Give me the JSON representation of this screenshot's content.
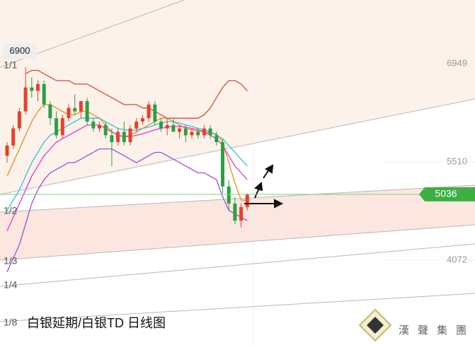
{
  "chart_data": {
    "type": "candlestick",
    "title": "白银延期/白银TD 日线图",
    "categories": [
      null,
      null,
      null,
      null,
      null,
      null,
      null,
      null,
      null,
      null,
      null,
      null,
      null,
      null,
      null,
      null,
      null,
      null,
      null,
      null,
      null,
      null,
      null,
      null,
      null,
      null,
      null,
      null,
      null,
      null,
      null,
      null,
      null,
      null,
      null,
      null,
      null,
      null,
      null,
      null
    ],
    "open": [
      5600,
      5750,
      6000,
      6250,
      6600,
      6550,
      6650,
      6350,
      6150,
      5900,
      6150,
      6300,
      6250,
      6400,
      6100,
      6000,
      6050,
      5900,
      5800,
      5950,
      5800,
      6000,
      6100,
      6150,
      6350,
      6100,
      6000,
      6050,
      5950,
      6000,
      5900,
      5950,
      5900,
      6000,
      5900,
      5800,
      5150,
      4900,
      4650,
      4850
    ],
    "high": [
      5800,
      6050,
      6300,
      6900,
      6750,
      6700,
      6700,
      6400,
      6250,
      6200,
      6350,
      6500,
      6400,
      6450,
      6150,
      6100,
      6100,
      6000,
      6000,
      6100,
      6050,
      6150,
      6200,
      6400,
      6400,
      6150,
      6150,
      6150,
      6050,
      6050,
      6000,
      6000,
      6050,
      6050,
      5950,
      5850,
      5250,
      5000,
      4900,
      5050
    ],
    "low": [
      5500,
      5700,
      5950,
      6200,
      6450,
      6400,
      6300,
      6050,
      5850,
      5850,
      6100,
      6200,
      6150,
      6050,
      5950,
      5950,
      5850,
      5450,
      5750,
      5750,
      5750,
      5950,
      6050,
      6100,
      6050,
      5950,
      5900,
      5950,
      5850,
      5800,
      5850,
      5850,
      5850,
      5850,
      5750,
      5050,
      4800,
      4600,
      4550,
      4800
    ],
    "close": [
      5750,
      6000,
      6250,
      6600,
      6550,
      6650,
      6350,
      6150,
      5900,
      6150,
      6300,
      6250,
      6400,
      6100,
      6000,
      6050,
      5900,
      5800,
      5950,
      5800,
      6000,
      6100,
      6150,
      6350,
      6100,
      6000,
      6050,
      5950,
      6000,
      5900,
      5950,
      5900,
      6000,
      5900,
      5800,
      5150,
      4900,
      4650,
      4850,
      5036
    ],
    "up_color": "#e8402a",
    "down_color": "#2f9e44",
    "series": [
      {
        "color": "#d9493a",
        "values": [
          null,
          null,
          null,
          6800,
          6850,
          6850,
          6800,
          6750,
          6700,
          6700,
          6700,
          6650,
          6650,
          6650,
          6600,
          6550,
          6500,
          6450,
          6400,
          6350,
          6350,
          6350,
          6300,
          6300,
          6250,
          6200,
          6150,
          6150,
          6150,
          6150,
          6150,
          6150,
          6200,
          6300,
          6450,
          6600,
          6700,
          6700,
          6650,
          6550
        ]
      },
      {
        "color": "#f08a1c",
        "values": [
          5300,
          5500,
          5700,
          5900,
          6100,
          6250,
          6350,
          6350,
          6300,
          6250,
          6200,
          6200,
          6250,
          6250,
          6200,
          6150,
          6050,
          5950,
          5900,
          5880,
          5900,
          5950,
          6000,
          6050,
          6100,
          6150,
          6150,
          6100,
          6050,
          6000,
          5980,
          5960,
          5950,
          5940,
          5920,
          5800,
          5500,
          5200,
          4950,
          4950
        ]
      },
      {
        "color": "#2ec4d6",
        "values": [
          4800,
          4950,
          5100,
          5300,
          5500,
          5650,
          5800,
          5900,
          5950,
          6000,
          6050,
          6100,
          6150,
          6150,
          6150,
          6150,
          6100,
          6050,
          6000,
          5980,
          5970,
          5980,
          6000,
          6020,
          6050,
          6080,
          6100,
          6100,
          6080,
          6050,
          6030,
          6000,
          5980,
          5950,
          5900,
          5850,
          5750,
          5650,
          5550,
          5450
        ]
      },
      {
        "color": "#e03ad8",
        "values": [
          4500,
          4700,
          4900,
          5100,
          5300,
          5450,
          5600,
          5700,
          5800,
          5850,
          5900,
          5950,
          6000,
          6050,
          6050,
          6050,
          6000,
          5950,
          5900,
          5880,
          5880,
          5900,
          5920,
          5950,
          5980,
          6000,
          6020,
          6030,
          6030,
          6020,
          6000,
          5980,
          5950,
          5900,
          5850,
          5750,
          5600,
          5450,
          5350,
          5250
        ]
      },
      {
        "color": "#9b4fd6",
        "values": [
          3900,
          4100,
          4300,
          4600,
          4900,
          5100,
          5250,
          5350,
          5400,
          5450,
          5500,
          5500,
          5550,
          5600,
          5650,
          5700,
          5700,
          5700,
          5650,
          5600,
          5550,
          5500,
          5550,
          5600,
          5650,
          5650,
          5600,
          5550,
          5500,
          5450,
          5400,
          5350,
          5350,
          5300,
          5250,
          5000,
          4800,
          4750,
          4700,
          4650
        ]
      }
    ],
    "ylim": [
      2830,
      7880
    ],
    "yticks": [
      6949,
      5510,
      4072
    ],
    "last_price": 5036,
    "high_marker": 6900,
    "fan_labels": [
      "1/1",
      "1/2",
      "1/3",
      "1/4",
      "1/8"
    ],
    "logo": "漢聲集團"
  }
}
